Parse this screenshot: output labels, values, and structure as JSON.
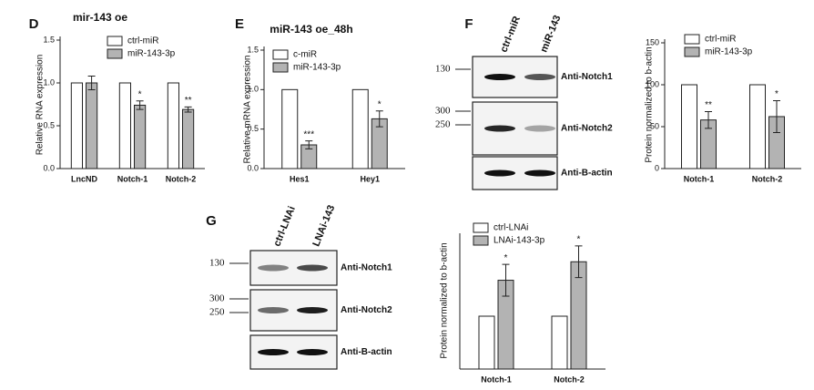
{
  "chart_data": [
    {
      "type": "bar",
      "panel": "D",
      "title": "mir-143 oe",
      "y_label": "Relative RNA expression",
      "categories": [
        "LncND",
        "Notch-1",
        "Notch-2"
      ],
      "series": [
        {
          "name": "ctrl-miR",
          "color": "#ffffff",
          "values": [
            1,
            1,
            1
          ]
        },
        {
          "name": "miR-143-3p",
          "color": "#b3b3b3",
          "values": [
            1.0,
            0.74,
            0.69
          ],
          "errors": [
            0.08,
            0.05,
            0.03
          ],
          "stars": [
            null,
            "*",
            "**"
          ]
        }
      ],
      "ylim": [
        0,
        1.5
      ],
      "yticks": [
        {
          "value": 0,
          "label": "0.0"
        },
        {
          "value": 0.5,
          "label": "0.5"
        },
        {
          "value": 1,
          "label": "1.0"
        },
        {
          "value": 1.5,
          "label": "1.5"
        }
      ]
    },
    {
      "type": "bar",
      "panel": "E",
      "title": "miR-143 oe_48h",
      "y_label": "Relative mRNA expression",
      "categories": [
        "Hes1",
        "Hey1"
      ],
      "series": [
        {
          "name": "c-miR",
          "color": "#ffffff",
          "values": [
            1,
            1
          ]
        },
        {
          "name": "miR-143-3p",
          "color": "#b3b3b3",
          "values": [
            0.3,
            0.63
          ],
          "errors": [
            0.05,
            0.1
          ],
          "stars": [
            "***",
            "*"
          ]
        }
      ],
      "ylim": [
        0,
        1.5
      ],
      "yticks": [
        {
          "value": 0,
          "label": "0.0"
        },
        {
          "value": 0.5,
          "label": "0.5"
        },
        {
          "value": 1,
          "label": "1.0"
        },
        {
          "value": 1.5,
          "label": "1.5"
        }
      ]
    },
    {
      "type": "bar",
      "y_label": "Protein normalized to b-actin",
      "categories": [
        "Notch-1",
        "Notch-2"
      ],
      "series": [
        {
          "name": "ctrl-miR",
          "color": "#ffffff",
          "values": [
            100,
            100
          ]
        },
        {
          "name": "miR-143-3p",
          "color": "#b3b3b3",
          "values": [
            58,
            62
          ],
          "errors": [
            10,
            19
          ],
          "stars": [
            "**",
            "*"
          ]
        }
      ],
      "ylim": [
        0,
        150
      ],
      "yticks": [
        0,
        50,
        100,
        150
      ]
    },
    {
      "type": "bar",
      "y_label": "Protein normalized to b-actin",
      "categories": [
        "Notch-1",
        "Notch-2"
      ],
      "series": [
        {
          "name": "ctrl-LNAi",
          "color": "#ffffff",
          "values": [
            100,
            100
          ]
        },
        {
          "name": "LNAi-143-3p",
          "color": "#b3b3b3",
          "values": [
            168,
            203
          ],
          "errors": [
            30,
            30
          ],
          "stars": [
            "*",
            "*"
          ]
        }
      ],
      "ylim": [
        0,
        250
      ]
    }
  ],
  "blots": [
    {
      "panel": "F",
      "lanes": [
        "ctrl-miR",
        "miR-143"
      ],
      "rows": [
        {
          "label": "Anti-Notch1",
          "markers": [
            130
          ]
        },
        {
          "label": "Anti-Notch2",
          "markers": [
            300,
            250
          ]
        },
        {
          "label": "Anti-B-actin"
        }
      ]
    },
    {
      "panel": "G",
      "lanes": [
        "ctrl-LNAi",
        "LNAi-143"
      ],
      "rows": [
        {
          "label": "Anti-Notch1",
          "markers": [
            130
          ]
        },
        {
          "label": "Anti-Notch2",
          "markers": [
            300,
            250
          ]
        },
        {
          "label": "Anti-B-actin"
        }
      ]
    }
  ]
}
